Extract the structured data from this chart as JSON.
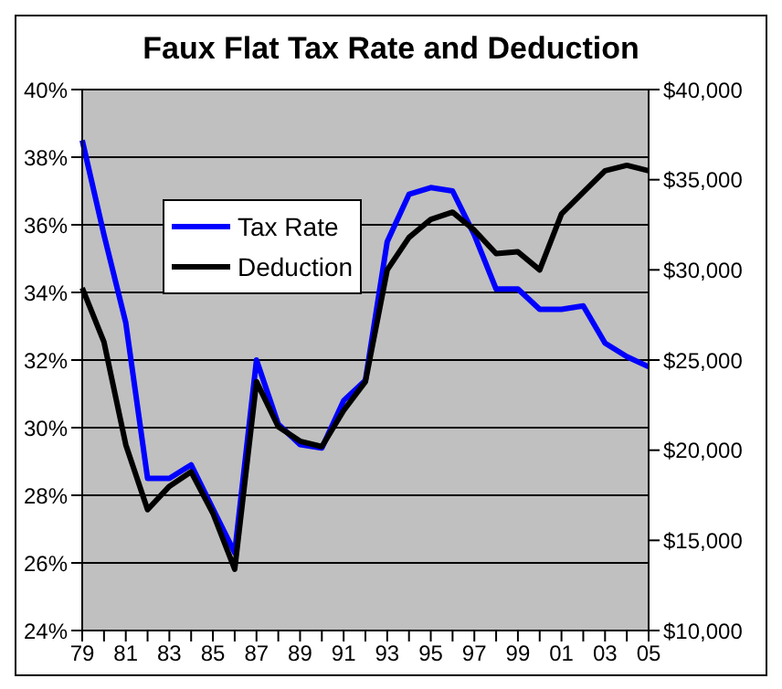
{
  "chart_data": {
    "type": "line",
    "title": "Faux Flat Tax Rate and Deduction",
    "categories": [
      "79",
      null,
      "81",
      null,
      "83",
      null,
      "85",
      null,
      "87",
      null,
      "89",
      null,
      "91",
      null,
      "93",
      null,
      "95",
      null,
      "97",
      null,
      "99",
      null,
      "01",
      null,
      "03",
      null,
      "05"
    ],
    "series": [
      {
        "name": "Tax Rate",
        "color": "#0000ff",
        "values": [
          38.5,
          35.7,
          33.1,
          28.5,
          28.5,
          28.9,
          27.6,
          26.3,
          32.0,
          30.1,
          29.5,
          29.4,
          30.8,
          31.4,
          35.5,
          36.9,
          37.1,
          37.0,
          35.7,
          34.1,
          34.1,
          33.5,
          33.5,
          33.6,
          32.5,
          32.1,
          31.8
        ]
      },
      {
        "name": "Deduction",
        "color": "#000000",
        "axis": "y2",
        "values": [
          29000,
          26000,
          20300,
          16700,
          18000,
          18800,
          16500,
          13400,
          23800,
          21300,
          20500,
          20200,
          22200,
          23800,
          30000,
          31800,
          32800,
          33200,
          32200,
          30900,
          31000,
          30000,
          33100,
          34300,
          35500,
          35800,
          35500
        ]
      }
    ],
    "ylim": [
      24,
      40
    ],
    "yticks": [
      {
        "value": 24,
        "label": "24%"
      },
      {
        "value": 26,
        "label": "26%"
      },
      {
        "value": 28,
        "label": "28%"
      },
      {
        "value": 30,
        "label": "30%"
      },
      {
        "value": 32,
        "label": "32%"
      },
      {
        "value": 34,
        "label": "34%"
      },
      {
        "value": 36,
        "label": "36%"
      },
      {
        "value": 38,
        "label": "38%"
      },
      {
        "value": 40,
        "label": "40%"
      }
    ],
    "y2lim": [
      10000,
      40000
    ],
    "y2ticks": [
      {
        "value": 10000,
        "label": "$10,000"
      },
      {
        "value": 15000,
        "label": "$15,000"
      },
      {
        "value": 20000,
        "label": "$20,000"
      },
      {
        "value": 25000,
        "label": "$25,000"
      },
      {
        "value": 30000,
        "label": "$30,000"
      },
      {
        "value": 35000,
        "label": "$35,000"
      },
      {
        "value": 40000,
        "label": "$40,000"
      }
    ],
    "grid": "y",
    "legend": "top left",
    "marker": "none",
    "line_style": "solid"
  }
}
